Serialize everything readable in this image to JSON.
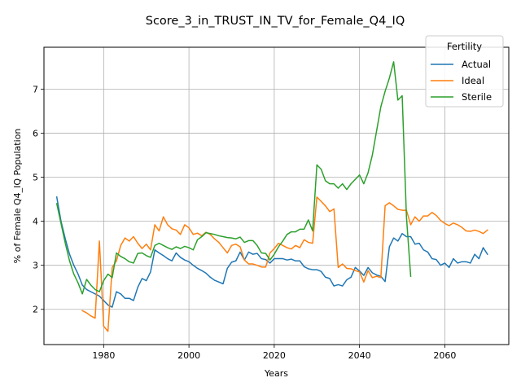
{
  "chart_data": {
    "type": "line",
    "title": "Score_3_in_TRUST_IN_TV_for_Female_Q4_IQ",
    "xlabel": "Years",
    "ylabel": "% of Female Q4_IQ Population",
    "xlim": [
      1966,
      2075
    ],
    "ylim": [
      1.2,
      7.95
    ],
    "xticks": [
      1980,
      2000,
      2020,
      2040,
      2060
    ],
    "yticks": [
      2,
      3,
      4,
      5,
      6,
      7
    ],
    "grid": true,
    "legend": {
      "title": "Fertility",
      "placement": "top-right"
    },
    "series": [
      {
        "name": "Actual",
        "color": "#1f77b4",
        "points": [
          [
            1969,
            4.55
          ],
          [
            1970,
            4.0
          ],
          [
            1971,
            3.6
          ],
          [
            1972,
            3.25
          ],
          [
            1973,
            3.0
          ],
          [
            1974,
            2.8
          ],
          [
            1975,
            2.55
          ],
          [
            1976,
            2.45
          ],
          [
            1977,
            2.4
          ],
          [
            1978,
            2.35
          ],
          [
            1979,
            2.3
          ],
          [
            1980,
            2.2
          ],
          [
            1981,
            2.1
          ],
          [
            1982,
            2.05
          ],
          [
            1983,
            2.4
          ],
          [
            1984,
            2.35
          ],
          [
            1985,
            2.25
          ],
          [
            1986,
            2.25
          ],
          [
            1987,
            2.2
          ],
          [
            1988,
            2.5
          ],
          [
            1989,
            2.7
          ],
          [
            1990,
            2.65
          ],
          [
            1991,
            2.85
          ],
          [
            1992,
            3.35
          ],
          [
            1993,
            3.28
          ],
          [
            1994,
            3.22
          ],
          [
            1995,
            3.15
          ],
          [
            1996,
            3.1
          ],
          [
            1997,
            3.28
          ],
          [
            1998,
            3.18
          ],
          [
            1999,
            3.12
          ],
          [
            2000,
            3.08
          ],
          [
            2001,
            3.0
          ],
          [
            2002,
            2.93
          ],
          [
            2003,
            2.88
          ],
          [
            2004,
            2.82
          ],
          [
            2005,
            2.73
          ],
          [
            2006,
            2.66
          ],
          [
            2007,
            2.62
          ],
          [
            2008,
            2.58
          ],
          [
            2009,
            2.93
          ],
          [
            2010,
            3.07
          ],
          [
            2011,
            3.1
          ],
          [
            2012,
            3.3
          ],
          [
            2013,
            3.12
          ],
          [
            2014,
            3.3
          ],
          [
            2015,
            3.25
          ],
          [
            2016,
            3.27
          ],
          [
            2017,
            3.15
          ],
          [
            2018,
            3.13
          ],
          [
            2019,
            3.05
          ],
          [
            2020,
            3.15
          ],
          [
            2021,
            3.15
          ],
          [
            2022,
            3.15
          ],
          [
            2023,
            3.12
          ],
          [
            2024,
            3.14
          ],
          [
            2025,
            3.1
          ],
          [
            2026,
            3.1
          ],
          [
            2027,
            2.97
          ],
          [
            2028,
            2.92
          ],
          [
            2029,
            2.9
          ],
          [
            2030,
            2.9
          ],
          [
            2031,
            2.86
          ],
          [
            2032,
            2.73
          ],
          [
            2033,
            2.7
          ],
          [
            2034,
            2.53
          ],
          [
            2035,
            2.56
          ],
          [
            2036,
            2.53
          ],
          [
            2037,
            2.67
          ],
          [
            2038,
            2.73
          ],
          [
            2039,
            2.95
          ],
          [
            2040,
            2.87
          ],
          [
            2041,
            2.77
          ],
          [
            2042,
            2.95
          ],
          [
            2043,
            2.83
          ],
          [
            2044,
            2.78
          ],
          [
            2045,
            2.75
          ],
          [
            2046,
            2.63
          ],
          [
            2047,
            3.42
          ],
          [
            2048,
            3.62
          ],
          [
            2049,
            3.55
          ],
          [
            2050,
            3.72
          ],
          [
            2051,
            3.65
          ],
          [
            2052,
            3.65
          ],
          [
            2053,
            3.48
          ],
          [
            2054,
            3.5
          ],
          [
            2055,
            3.35
          ],
          [
            2056,
            3.3
          ],
          [
            2057,
            3.15
          ],
          [
            2058,
            3.13
          ],
          [
            2059,
            3.0
          ],
          [
            2060,
            3.05
          ],
          [
            2061,
            2.95
          ],
          [
            2062,
            3.15
          ],
          [
            2063,
            3.05
          ],
          [
            2064,
            3.08
          ],
          [
            2065,
            3.08
          ],
          [
            2066,
            3.05
          ],
          [
            2067,
            3.25
          ],
          [
            2068,
            3.15
          ],
          [
            2069,
            3.4
          ],
          [
            2070,
            3.25
          ]
        ]
      },
      {
        "name": "Ideal",
        "color": "#ff7f0e",
        "points": [
          [
            1975,
            1.97
          ],
          [
            1976,
            1.92
          ],
          [
            1977,
            1.85
          ],
          [
            1978,
            1.8
          ],
          [
            1979,
            3.55
          ],
          [
            1980,
            1.62
          ],
          [
            1981,
            1.5
          ],
          [
            1982,
            2.95
          ],
          [
            1983,
            3.1
          ],
          [
            1984,
            3.45
          ],
          [
            1985,
            3.62
          ],
          [
            1986,
            3.55
          ],
          [
            1987,
            3.65
          ],
          [
            1988,
            3.5
          ],
          [
            1989,
            3.38
          ],
          [
            1990,
            3.48
          ],
          [
            1991,
            3.35
          ],
          [
            1992,
            3.92
          ],
          [
            1993,
            3.78
          ],
          [
            1994,
            4.1
          ],
          [
            1995,
            3.92
          ],
          [
            1996,
            3.83
          ],
          [
            1997,
            3.8
          ],
          [
            1998,
            3.7
          ],
          [
            1999,
            3.92
          ],
          [
            2000,
            3.85
          ],
          [
            2001,
            3.7
          ],
          [
            2002,
            3.73
          ],
          [
            2003,
            3.67
          ],
          [
            2004,
            3.75
          ],
          [
            2005,
            3.7
          ],
          [
            2006,
            3.6
          ],
          [
            2007,
            3.52
          ],
          [
            2008,
            3.4
          ],
          [
            2009,
            3.28
          ],
          [
            2010,
            3.45
          ],
          [
            2011,
            3.48
          ],
          [
            2012,
            3.42
          ],
          [
            2013,
            3.12
          ],
          [
            2014,
            3.03
          ],
          [
            2015,
            3.03
          ],
          [
            2016,
            3.0
          ],
          [
            2017,
            2.96
          ],
          [
            2018,
            2.96
          ],
          [
            2019,
            3.28
          ],
          [
            2020,
            3.38
          ],
          [
            2021,
            3.5
          ],
          [
            2022,
            3.45
          ],
          [
            2023,
            3.4
          ],
          [
            2024,
            3.37
          ],
          [
            2025,
            3.45
          ],
          [
            2026,
            3.4
          ],
          [
            2027,
            3.58
          ],
          [
            2028,
            3.52
          ],
          [
            2029,
            3.5
          ],
          [
            2030,
            4.55
          ],
          [
            2031,
            4.45
          ],
          [
            2032,
            4.35
          ],
          [
            2033,
            4.22
          ],
          [
            2034,
            4.28
          ],
          [
            2035,
            2.95
          ],
          [
            2036,
            3.03
          ],
          [
            2037,
            2.93
          ],
          [
            2038,
            2.92
          ],
          [
            2039,
            2.88
          ],
          [
            2040,
            2.85
          ],
          [
            2041,
            2.62
          ],
          [
            2042,
            2.88
          ],
          [
            2043,
            2.72
          ],
          [
            2044,
            2.75
          ],
          [
            2045,
            2.72
          ],
          [
            2046,
            4.35
          ],
          [
            2047,
            4.42
          ],
          [
            2048,
            4.35
          ],
          [
            2049,
            4.27
          ],
          [
            2050,
            4.25
          ],
          [
            2051,
            4.25
          ],
          [
            2052,
            3.92
          ],
          [
            2053,
            4.1
          ],
          [
            2054,
            4.0
          ],
          [
            2055,
            4.12
          ],
          [
            2056,
            4.12
          ],
          [
            2057,
            4.2
          ],
          [
            2058,
            4.13
          ],
          [
            2059,
            4.02
          ],
          [
            2060,
            3.95
          ],
          [
            2061,
            3.9
          ],
          [
            2062,
            3.96
          ],
          [
            2063,
            3.92
          ],
          [
            2064,
            3.86
          ],
          [
            2065,
            3.78
          ],
          [
            2066,
            3.77
          ],
          [
            2067,
            3.8
          ],
          [
            2068,
            3.77
          ],
          [
            2069,
            3.72
          ],
          [
            2070,
            3.8
          ]
        ]
      },
      {
        "name": "Sterile",
        "color": "#2ca02c",
        "points": [
          [
            1969,
            4.4
          ],
          [
            1970,
            3.95
          ],
          [
            1971,
            3.5
          ],
          [
            1972,
            3.1
          ],
          [
            1973,
            2.8
          ],
          [
            1974,
            2.6
          ],
          [
            1975,
            2.35
          ],
          [
            1976,
            2.68
          ],
          [
            1977,
            2.55
          ],
          [
            1978,
            2.45
          ],
          [
            1979,
            2.4
          ],
          [
            1980,
            2.65
          ],
          [
            1981,
            2.8
          ],
          [
            1982,
            2.72
          ],
          [
            1983,
            3.28
          ],
          [
            1984,
            3.2
          ],
          [
            1985,
            3.15
          ],
          [
            1986,
            3.08
          ],
          [
            1987,
            3.05
          ],
          [
            1988,
            3.27
          ],
          [
            1989,
            3.28
          ],
          [
            1990,
            3.22
          ],
          [
            1991,
            3.18
          ],
          [
            1992,
            3.45
          ],
          [
            1993,
            3.5
          ],
          [
            1994,
            3.45
          ],
          [
            1995,
            3.4
          ],
          [
            1996,
            3.36
          ],
          [
            1997,
            3.42
          ],
          [
            1998,
            3.38
          ],
          [
            1999,
            3.43
          ],
          [
            2000,
            3.4
          ],
          [
            2001,
            3.35
          ],
          [
            2002,
            3.58
          ],
          [
            2003,
            3.65
          ],
          [
            2004,
            3.74
          ],
          [
            2005,
            3.72
          ],
          [
            2006,
            3.7
          ],
          [
            2007,
            3.67
          ],
          [
            2008,
            3.65
          ],
          [
            2009,
            3.63
          ],
          [
            2010,
            3.62
          ],
          [
            2011,
            3.6
          ],
          [
            2012,
            3.64
          ],
          [
            2013,
            3.52
          ],
          [
            2014,
            3.56
          ],
          [
            2015,
            3.56
          ],
          [
            2016,
            3.45
          ],
          [
            2017,
            3.28
          ],
          [
            2018,
            3.27
          ],
          [
            2019,
            3.12
          ],
          [
            2020,
            3.25
          ],
          [
            2021,
            3.42
          ],
          [
            2022,
            3.55
          ],
          [
            2023,
            3.7
          ],
          [
            2024,
            3.76
          ],
          [
            2025,
            3.76
          ],
          [
            2026,
            3.82
          ],
          [
            2027,
            3.82
          ],
          [
            2028,
            4.03
          ],
          [
            2029,
            3.78
          ],
          [
            2030,
            5.28
          ],
          [
            2031,
            5.18
          ],
          [
            2032,
            4.92
          ],
          [
            2033,
            4.85
          ],
          [
            2034,
            4.85
          ],
          [
            2035,
            4.75
          ],
          [
            2036,
            4.85
          ],
          [
            2037,
            4.72
          ],
          [
            2038,
            4.85
          ],
          [
            2039,
            4.95
          ],
          [
            2040,
            5.05
          ],
          [
            2041,
            4.85
          ],
          [
            2042,
            5.1
          ],
          [
            2043,
            5.5
          ],
          [
            2044,
            6.05
          ],
          [
            2045,
            6.6
          ],
          [
            2046,
            6.95
          ],
          [
            2047,
            7.25
          ],
          [
            2048,
            7.62
          ],
          [
            2049,
            6.75
          ],
          [
            2050,
            6.85
          ],
          [
            2051,
            4.1
          ],
          [
            2052,
            2.75
          ]
        ]
      }
    ]
  }
}
